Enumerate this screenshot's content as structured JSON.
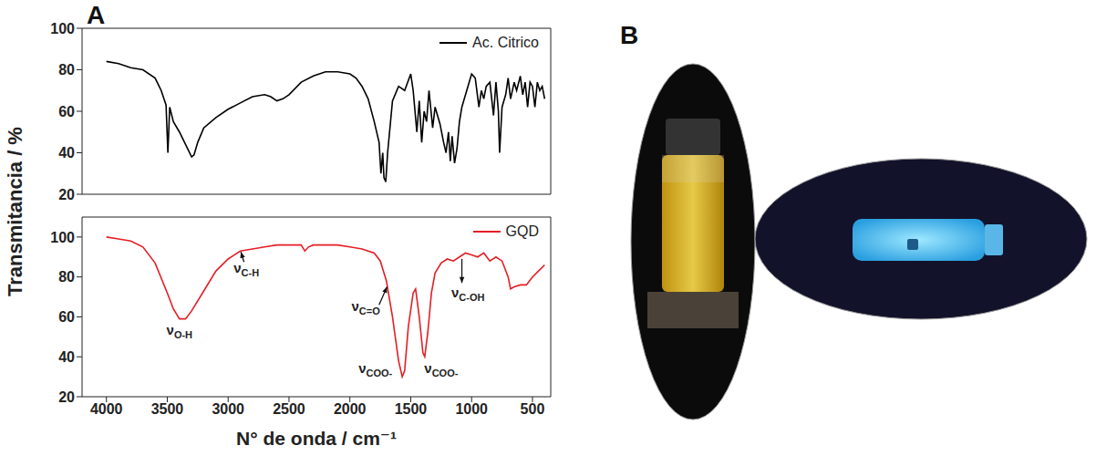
{
  "panel_labels": [
    "A",
    "B"
  ],
  "ylabel": "Transmitancia / %",
  "chart_data": [
    {
      "type": "line",
      "x": [
        4000,
        3900,
        3800,
        3700,
        3600,
        3550,
        3510,
        3495,
        3480,
        3450,
        3400,
        3350,
        3300,
        3280,
        3250,
        3200,
        3100,
        3000,
        2900,
        2800,
        2700,
        2650,
        2600,
        2550,
        2500,
        2400,
        2300,
        2200,
        2100,
        2000,
        1950,
        1900,
        1850,
        1800,
        1760,
        1745,
        1730,
        1720,
        1705,
        1690,
        1650,
        1600,
        1550,
        1500,
        1480,
        1450,
        1430,
        1410,
        1390,
        1370,
        1350,
        1320,
        1300,
        1260,
        1230,
        1210,
        1190,
        1175,
        1160,
        1140,
        1120,
        1100,
        1080,
        1050,
        1030,
        1000,
        970,
        940,
        920,
        900,
        880,
        850,
        820,
        800,
        780,
        770,
        750,
        720,
        700,
        680,
        650,
        630,
        600,
        580,
        560,
        540,
        520,
        500,
        480,
        460,
        440,
        420,
        400
      ],
      "series": [
        {
          "name": "Ac. Citrico",
          "color": "#000000",
          "values": [
            84,
            83,
            81,
            80,
            76,
            70,
            63,
            40,
            62,
            55,
            50,
            44,
            38,
            39,
            45,
            52,
            57,
            61,
            64,
            67,
            68,
            67,
            65,
            66,
            68,
            74,
            77,
            79,
            79,
            78,
            76,
            72,
            66,
            55,
            45,
            30,
            40,
            28,
            26,
            40,
            65,
            72,
            70,
            78,
            70,
            50,
            65,
            45,
            60,
            55,
            70,
            52,
            62,
            54,
            45,
            40,
            50,
            36,
            48,
            35,
            42,
            55,
            62,
            68,
            72,
            78,
            76,
            62,
            70,
            66,
            72,
            74,
            58,
            74,
            60,
            40,
            62,
            68,
            76,
            66,
            74,
            70,
            77,
            68,
            74,
            62,
            74,
            72,
            62,
            74,
            70,
            72,
            66
          ]
        }
      ],
      "xlim": [
        4200,
        350
      ],
      "xticks": [
        4000,
        3500,
        3000,
        2500,
        2000,
        1500,
        1000,
        500
      ],
      "ylim": [
        20,
        100
      ],
      "yticks": [
        20,
        40,
        60,
        80,
        100
      ],
      "legend": "upper right",
      "tick_labels": "y"
    },
    {
      "type": "line",
      "x": [
        4000,
        3900,
        3800,
        3700,
        3600,
        3500,
        3450,
        3400,
        3350,
        3300,
        3200,
        3100,
        3000,
        2950,
        2900,
        2800,
        2700,
        2600,
        2500,
        2400,
        2370,
        2340,
        2300,
        2200,
        2100,
        2000,
        1900,
        1800,
        1750,
        1700,
        1650,
        1600,
        1570,
        1550,
        1520,
        1480,
        1460,
        1430,
        1400,
        1385,
        1360,
        1330,
        1300,
        1250,
        1200,
        1150,
        1100,
        1050,
        1000,
        950,
        900,
        850,
        800,
        750,
        700,
        680,
        650,
        600,
        550,
        500,
        450,
        400
      ],
      "series": [
        {
          "name": "GQD",
          "color": "#e41e25",
          "values": [
            100,
            99,
            98,
            95,
            87,
            72,
            64,
            59,
            59,
            63,
            73,
            83,
            89,
            91,
            93,
            94,
            95,
            96,
            96,
            96,
            93,
            95,
            96,
            96,
            96,
            95,
            94,
            92,
            88,
            78,
            60,
            38,
            30,
            33,
            55,
            72,
            74,
            60,
            42,
            40,
            52,
            72,
            82,
            87,
            89,
            88,
            90,
            92,
            91,
            90,
            92,
            88,
            90,
            88,
            80,
            74,
            75,
            76,
            76,
            80,
            83,
            86
          ]
        }
      ],
      "xlabel": "N° de onda / cm⁻¹",
      "xlim": [
        4200,
        350
      ],
      "xticks": [
        4000,
        3500,
        3000,
        2500,
        2000,
        1500,
        1000,
        500
      ],
      "ylim": [
        20,
        110
      ],
      "yticks": [
        20,
        40,
        60,
        80,
        100
      ],
      "legend": "upper right",
      "annotations": [
        {
          "text": "νO-H",
          "x": 3400,
          "y": 51
        },
        {
          "text": "νC-H",
          "x": 2850,
          "y": 82,
          "arrow": [
            [
              2870,
              87.5
            ],
            [
              2895,
              92.5
            ]
          ]
        },
        {
          "text": "νC=O",
          "x": 1870,
          "y": 63,
          "arrow": [
            [
              1760,
              66
            ],
            [
              1695,
              75
            ]
          ]
        },
        {
          "text": "νCOO-",
          "x": 1790,
          "y": 32
        },
        {
          "text": "νCOO-",
          "x": 1250,
          "y": 32
        },
        {
          "text": "νC-OH",
          "x": 1030,
          "y": 70,
          "arrow": [
            [
              1080,
              89
            ],
            [
              1080,
              77
            ]
          ]
        }
      ]
    }
  ]
}
